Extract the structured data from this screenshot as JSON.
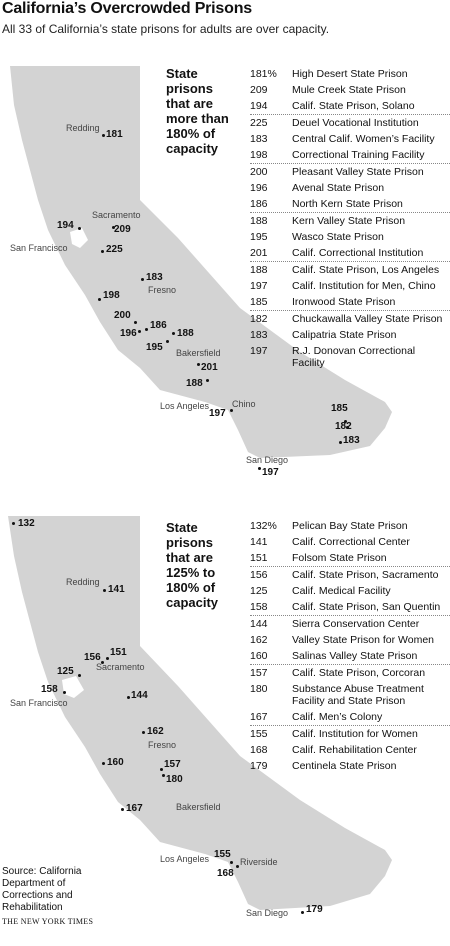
{
  "title": "California’s Overcrowded Prisons",
  "subtitle": "All 33 of California’s state prisons for adults are over capacity.",
  "map_colors": {
    "land": "#d3d3d3",
    "coast": "#ffffff",
    "dot": "#111111"
  },
  "panels": [
    {
      "heading_lines": [
        "State",
        "prisons",
        "that are",
        "more than",
        "180% of",
        "capacity"
      ],
      "prisons": [
        {
          "value": "181%",
          "name": "High Desert State Prison"
        },
        {
          "value": "209",
          "name": "Mule Creek State Prison"
        },
        {
          "value": "194",
          "name": "Calif. State Prison, Solano"
        },
        {
          "value": "225",
          "name": "Deuel Vocational Institution"
        },
        {
          "value": "183",
          "name": "Central Calif. Women’s Facility"
        },
        {
          "value": "198",
          "name": "Correctional Training Facility"
        },
        {
          "value": "200",
          "name": "Pleasant Valley State Prison"
        },
        {
          "value": "196",
          "name": "Avenal State Prison"
        },
        {
          "value": "186",
          "name": "North Kern State Prison"
        },
        {
          "value": "188",
          "name": "Kern Valley State Prison"
        },
        {
          "value": "195",
          "name": "Wasco State Prison"
        },
        {
          "value": "201",
          "name": "Calif. Correctional Institution"
        },
        {
          "value": "188",
          "name": "Calif. State Prison, Los Angeles"
        },
        {
          "value": "197",
          "name": "Calif. Institution for Men, Chino"
        },
        {
          "value": "185",
          "name": "Ironwood State Prison"
        },
        {
          "value": "182",
          "name": "Chuckawalla Valley State Prison"
        },
        {
          "value": "183",
          "name": "Calipatria State Prison"
        },
        {
          "value": "197",
          "name": "R.J. Donovan Correctional Facility"
        }
      ],
      "separators_after": [
        2,
        5,
        8,
        11,
        14
      ],
      "cities": [
        "Redding",
        "Sacramento",
        "San Francisco",
        "Fresno",
        "Bakersfield",
        "Los Angeles",
        "Chino",
        "San Diego"
      ],
      "map_labels": [
        "181",
        "194",
        "209",
        "225",
        "183",
        "198",
        "200",
        "186",
        "188",
        "196",
        "195",
        "201",
        "188",
        "197",
        "185",
        "182",
        "183",
        "197"
      ]
    },
    {
      "heading_lines": [
        "State",
        "prisons",
        "that are",
        "125% to",
        "180% of",
        "capacity"
      ],
      "prisons": [
        {
          "value": "132%",
          "name": "Pelican Bay State Prison"
        },
        {
          "value": "141",
          "name": "Calif. Correctional Center"
        },
        {
          "value": "151",
          "name": "Folsom State Prison"
        },
        {
          "value": "156",
          "name": "Calif. State Prison, Sacramento"
        },
        {
          "value": "125",
          "name": "Calif. Medical Facility"
        },
        {
          "value": "158",
          "name": "Calif. State Prison, San Quentin"
        },
        {
          "value": "144",
          "name": "Sierra Conservation Center"
        },
        {
          "value": "162",
          "name": "Valley State Prison for Women"
        },
        {
          "value": "160",
          "name": "Salinas Valley State Prison"
        },
        {
          "value": "157",
          "name": "Calif. State Prison, Corcoran"
        },
        {
          "value": "180",
          "name": "Substance Abuse Treatment Facility and State Prison"
        },
        {
          "value": "167",
          "name": "Calif. Men’s Colony"
        },
        {
          "value": "155",
          "name": "Calif. Institution for Women"
        },
        {
          "value": "168",
          "name": "Calif. Rehabilitation Center"
        },
        {
          "value": "179",
          "name": "Centinela State Prison"
        }
      ],
      "separators_after": [
        2,
        5,
        8,
        11
      ],
      "cities": [
        "Redding",
        "Sacramento",
        "San Francisco",
        "Fresno",
        "Bakersfield",
        "Los Angeles",
        "Riverside",
        "San Diego"
      ],
      "map_labels": [
        "132",
        "141",
        "156",
        "151",
        "125",
        "158",
        "144",
        "162",
        "160",
        "157",
        "180",
        "167",
        "155",
        "168",
        "179"
      ]
    }
  ],
  "source": "Source: California Department of Corrections and Rehabilitation",
  "credit": "THE NEW YORK TIMES"
}
